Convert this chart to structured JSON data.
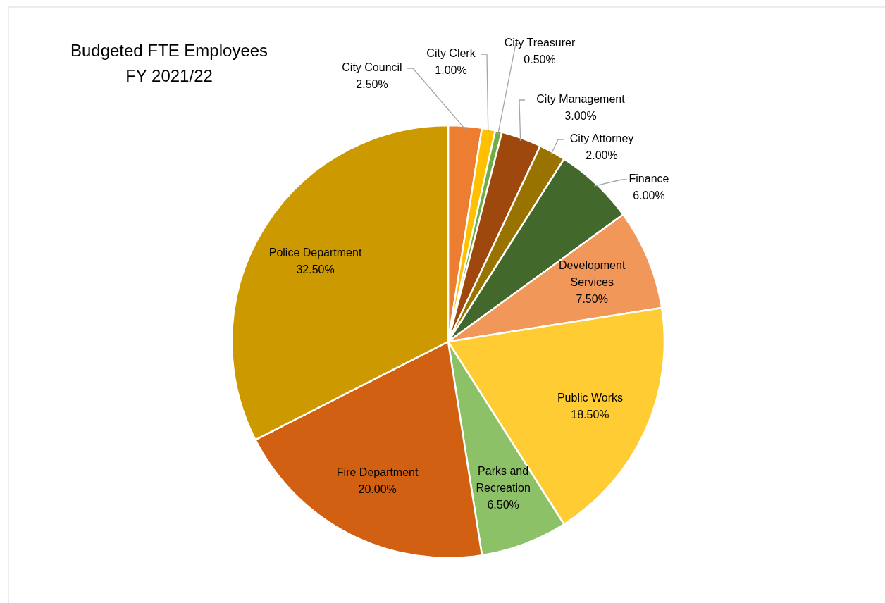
{
  "chart_data": {
    "type": "pie",
    "title": "Budgeted FTE Employees",
    "subtitle": "FY 2021/22",
    "categories": [
      "City Council",
      "City Clerk",
      "City Treasurer",
      "City Management",
      "City Attorney",
      "Finance",
      "Development Services",
      "Public Works",
      "Parks and Recreation",
      "Fire Department",
      "Police Department"
    ],
    "values": [
      2.5,
      1.0,
      0.5,
      3.0,
      2.0,
      6.0,
      7.5,
      18.5,
      6.5,
      20.0,
      32.5
    ],
    "value_labels": [
      "2.50%",
      "1.00%",
      "0.50%",
      "3.00%",
      "2.00%",
      "6.00%",
      "7.50%",
      "18.50%",
      "6.50%",
      "20.00%",
      "32.50%"
    ],
    "colors": [
      "#ed7d31",
      "#ffc000",
      "#70ad47",
      "#9e480e",
      "#997300",
      "#43682b",
      "#f1975a",
      "#ffcd33",
      "#8cc168",
      "#d26012",
      "#cc9a00"
    ]
  }
}
